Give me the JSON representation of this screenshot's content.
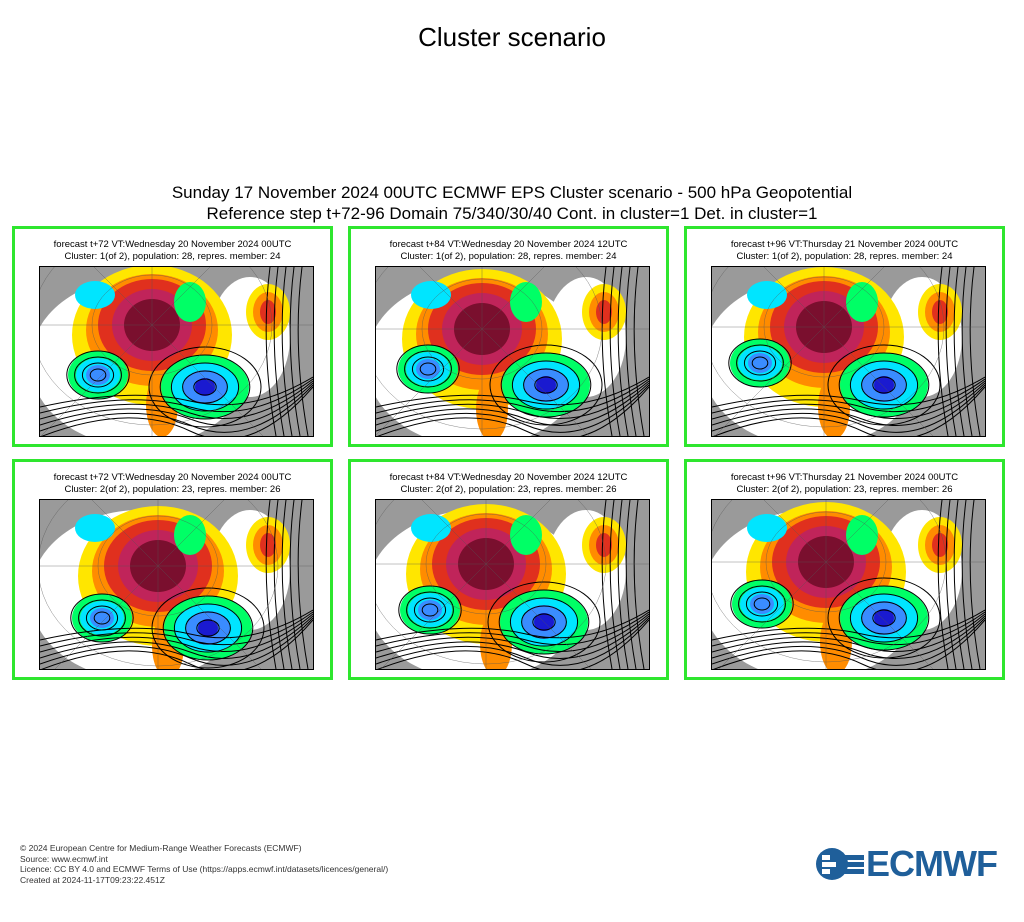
{
  "page": {
    "title": "Cluster scenario",
    "subtitle_line1": "Sunday 17 November 2024 00UTC ECMWF EPS Cluster scenario - 500 hPa Geopotential",
    "subtitle_line2": "Reference step t+72-96 Domain 75/340/30/40 Cont. in cluster=1 Det. in cluster=1"
  },
  "colors": {
    "panel_border": "#2ee62e",
    "logo_blue": "#1f5f9a"
  },
  "panels": [
    {
      "line1": "forecast t+72 VT:Wednesday 20 November 2024 00UTC",
      "line2": "Cluster: 1(of 2), population: 28, repres. member: 24"
    },
    {
      "line1": "forecast t+84 VT:Wednesday 20 November 2024 12UTC",
      "line2": "Cluster: 1(of 2), population: 28, repres. member: 24"
    },
    {
      "line1": "forecast t+96 VT:Thursday 21 November 2024 00UTC",
      "line2": "Cluster: 1(of 2), population: 28, repres. member: 24"
    },
    {
      "line1": "forecast t+72 VT:Wednesday 20 November 2024 00UTC",
      "line2": "Cluster: 2(of 2), population: 23, repres. member: 26"
    },
    {
      "line1": "forecast t+84 VT:Wednesday 20 November 2024 12UTC",
      "line2": "Cluster: 2(of 2), population: 23, repres. member: 26"
    },
    {
      "line1": "forecast t+96 VT:Thursday 21 November 2024 00UTC",
      "line2": "Cluster: 2(of 2), population: 23, repres. member: 26"
    }
  ],
  "footer": {
    "copyright": "© 2024 European Centre for Medium-Range Weather Forecasts (ECMWF)",
    "source": "Source: www.ecmwf.int",
    "licence": "Licence: CC BY 4.0 and ECMWF Terms of Use (https://apps.ecmwf.int/datasets/licences/general/)",
    "created": "Created at 2024-11-17T09:23:22.451Z"
  },
  "logo": {
    "text": "ECMWF"
  }
}
